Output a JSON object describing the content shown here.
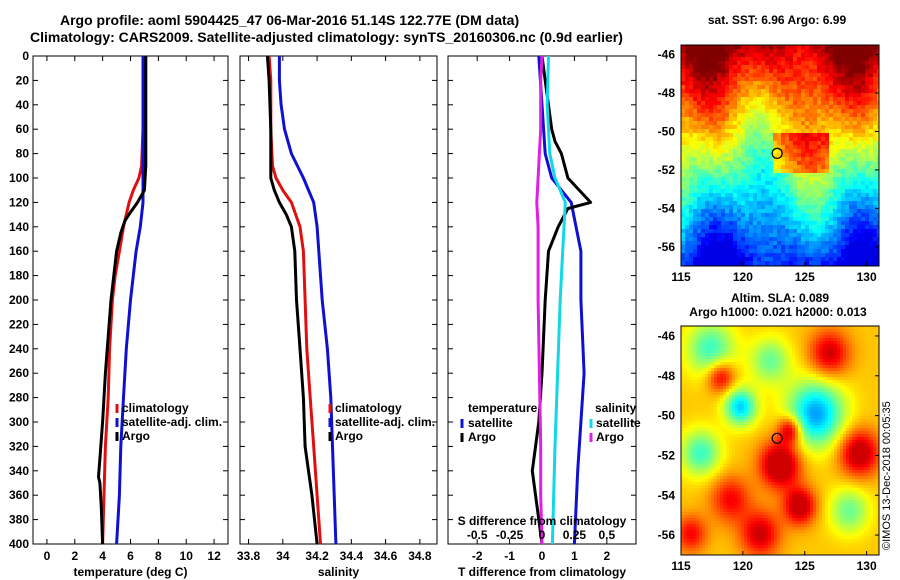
{
  "title_line1": "Argo profile: aoml 5904425_47 06-Mar-2016 51.14S 122.77E (DM data)",
  "title_line2": "Climatology: CARS2009. Satellite-adjusted climatology: synTS_20160306.nc (0.9d earlier)",
  "credit": "©IMOS 13-Dec-2018 00:05:35",
  "colors": {
    "red": "#e01010",
    "blue": "#1010d0",
    "black": "#000000",
    "magenta": "#e020e0",
    "cyan": "#10d8e8"
  },
  "depth_ticks": [
    0,
    20,
    40,
    60,
    80,
    100,
    120,
    140,
    160,
    180,
    200,
    220,
    240,
    260,
    280,
    300,
    320,
    340,
    360,
    380,
    400
  ],
  "chart_data": [
    {
      "type": "line",
      "name": "temperature",
      "xlabel": "temperature (deg C)",
      "ylabel": "depth",
      "xlim": [
        -1,
        13
      ],
      "ylim": [
        400,
        0
      ],
      "xticks": [
        "0",
        "2",
        "4",
        "6",
        "8",
        "10",
        "12"
      ],
      "xtick_values": [
        0,
        2,
        4,
        6,
        8,
        10,
        12
      ],
      "legend": [
        "climatology",
        "satellite-adj. clim.",
        "Argo"
      ],
      "series": [
        {
          "name": "climatology",
          "color": "red",
          "depth": [
            0,
            20,
            60,
            90,
            100,
            110,
            120,
            130,
            140,
            160,
            180,
            200,
            240,
            280,
            320,
            360,
            400
          ],
          "values": [
            7.1,
            7.0,
            6.9,
            6.8,
            6.6,
            6.2,
            5.9,
            5.7,
            5.5,
            5.2,
            4.9,
            4.7,
            4.5,
            4.4,
            4.2,
            4.1,
            4.0
          ]
        },
        {
          "name": "satellite-adj. clim.",
          "color": "blue",
          "depth": [
            0,
            20,
            60,
            100,
            120,
            140,
            160,
            200,
            240,
            280,
            320,
            360,
            400
          ],
          "values": [
            6.9,
            6.9,
            6.9,
            6.9,
            6.9,
            6.7,
            6.4,
            6.0,
            5.7,
            5.5,
            5.3,
            5.2,
            5.0
          ]
        },
        {
          "name": "Argo",
          "color": "black",
          "depth": [
            0,
            20,
            60,
            90,
            110,
            120,
            128,
            135,
            145,
            160,
            180,
            200,
            230,
            260,
            300,
            330,
            345,
            350,
            370,
            400
          ],
          "values": [
            7.1,
            7.1,
            7.1,
            7.1,
            7.0,
            6.5,
            6.0,
            5.6,
            5.3,
            5.0,
            4.8,
            4.6,
            4.4,
            4.2,
            4.0,
            3.8,
            3.7,
            3.8,
            3.9,
            4.0
          ]
        }
      ]
    },
    {
      "type": "line",
      "name": "salinity",
      "xlabel": "salinity",
      "ylabel": "depth",
      "xlim": [
        33.75,
        34.9
      ],
      "ylim": [
        400,
        0
      ],
      "xticks": [
        "33.8",
        "34",
        "34.2",
        "34.4",
        "34.6",
        "34.8"
      ],
      "xtick_values": [
        33.8,
        34.0,
        34.2,
        34.4,
        34.6,
        34.8
      ],
      "legend": [
        "climatology",
        "satellite-adj. clim.",
        "Argo"
      ],
      "series": [
        {
          "name": "climatology",
          "color": "red",
          "depth": [
            0,
            20,
            60,
            90,
            100,
            110,
            120,
            140,
            160,
            200,
            240,
            280,
            320,
            360,
            400
          ],
          "values": [
            33.92,
            33.93,
            33.93,
            33.94,
            33.96,
            34.0,
            34.05,
            34.1,
            34.12,
            34.13,
            34.14,
            34.16,
            34.18,
            34.2,
            34.22
          ]
        },
        {
          "name": "satellite-adj. clim.",
          "color": "blue",
          "depth": [
            0,
            20,
            40,
            60,
            80,
            100,
            120,
            140,
            160,
            200,
            240,
            280,
            320,
            360,
            400
          ],
          "values": [
            33.98,
            33.98,
            33.99,
            34.01,
            34.05,
            34.12,
            34.18,
            34.2,
            34.21,
            34.23,
            34.26,
            34.28,
            34.29,
            34.3,
            34.31
          ]
        },
        {
          "name": "Argo",
          "color": "black",
          "depth": [
            0,
            20,
            60,
            90,
            100,
            110,
            120,
            130,
            140,
            160,
            200,
            240,
            280,
            320,
            360,
            400
          ],
          "values": [
            33.91,
            33.92,
            33.93,
            33.93,
            33.93,
            33.95,
            33.98,
            34.02,
            34.05,
            34.07,
            34.08,
            34.1,
            34.12,
            34.13,
            34.17,
            34.2
          ]
        }
      ]
    },
    {
      "type": "line",
      "name": "difference",
      "xlabel": "T difference from climatology",
      "ylabel": "depth",
      "xlim": [
        -2.9,
        2.9
      ],
      "ylim": [
        400,
        0
      ],
      "xticks": [
        "-2",
        "-1",
        "0",
        "1",
        "2"
      ],
      "xtick_values": [
        -2,
        -1,
        0,
        1,
        2
      ],
      "top_axis_label": "S difference from climatology",
      "top_ticks": [
        "-0.5",
        "-0.25",
        "0",
        "0.25",
        "0.5"
      ],
      "top_tick_values": [
        -0.5,
        -0.25,
        0,
        0.25,
        0.5
      ],
      "legend_left_title": "temperature",
      "legend_left": [
        "satellite",
        "Argo"
      ],
      "legend_right_title": "salinity",
      "legend_right": [
        "satellite",
        "Argo"
      ],
      "series": [
        {
          "name": "T satellite",
          "color": "blue",
          "depth": [
            0,
            40,
            80,
            100,
            120,
            160,
            200,
            260,
            300,
            340,
            400
          ],
          "values": [
            -0.1,
            0.0,
            0.1,
            0.3,
            0.9,
            1.2,
            1.2,
            1.3,
            1.2,
            1.1,
            1.0
          ]
        },
        {
          "name": "T Argo",
          "color": "black",
          "depth": [
            0,
            20,
            60,
            70,
            80,
            100,
            120,
            125,
            140,
            160,
            200,
            260,
            300,
            340,
            380,
            400
          ],
          "values": [
            0.0,
            0.1,
            0.3,
            0.4,
            0.6,
            0.8,
            1.5,
            0.8,
            0.5,
            0.2,
            0.1,
            0.0,
            -0.1,
            -0.3,
            -0.1,
            0.0
          ]
        },
        {
          "name": "S satellite",
          "color": "cyan",
          "depth": [
            0,
            40,
            80,
            100,
            120,
            160,
            200,
            260,
            320,
            360,
            400
          ],
          "values": [
            0.05,
            0.04,
            0.06,
            0.1,
            0.18,
            0.16,
            0.14,
            0.12,
            0.1,
            0.09,
            0.08
          ]
        },
        {
          "name": "S Argo",
          "color": "magenta",
          "depth": [
            0,
            20,
            60,
            80,
            100,
            120,
            140,
            200,
            260,
            320,
            360,
            400
          ],
          "values": [
            0.0,
            -0.01,
            -0.01,
            -0.02,
            -0.03,
            -0.04,
            -0.03,
            -0.03,
            -0.02,
            -0.01,
            -0.01,
            0.0
          ]
        }
      ]
    },
    {
      "type": "heatmap",
      "name": "sst_map",
      "title": "sat. SST: 6.96 Argo: 6.99",
      "xlim": [
        115,
        131
      ],
      "ylim": [
        -57,
        -45.5
      ],
      "xticks": [
        "115",
        "120",
        "125",
        "130"
      ],
      "xtick_values": [
        115,
        120,
        125,
        130
      ],
      "yticks": [
        "-46",
        "-48",
        "-50",
        "-52",
        "-54",
        "-56"
      ],
      "ytick_values": [
        -46,
        -48,
        -50,
        -52,
        -54,
        -56
      ],
      "marker": {
        "lon": 122.77,
        "lat": -51.14
      }
    },
    {
      "type": "heatmap",
      "name": "sla_map",
      "title": "Altim. SLA: 0.089",
      "subtitle": "Argo h1000: 0.021 h2000: 0.013",
      "xlim": [
        115,
        131
      ],
      "ylim": [
        -57,
        -45.5
      ],
      "xticks": [
        "115",
        "120",
        "125",
        "130"
      ],
      "xtick_values": [
        115,
        120,
        125,
        130
      ],
      "yticks": [
        "-46",
        "-48",
        "-50",
        "-52",
        "-54",
        "-56"
      ],
      "ytick_values": [
        -46,
        -48,
        -50,
        -52,
        -54,
        -56
      ],
      "marker": {
        "lon": 122.77,
        "lat": -51.14
      }
    }
  ]
}
